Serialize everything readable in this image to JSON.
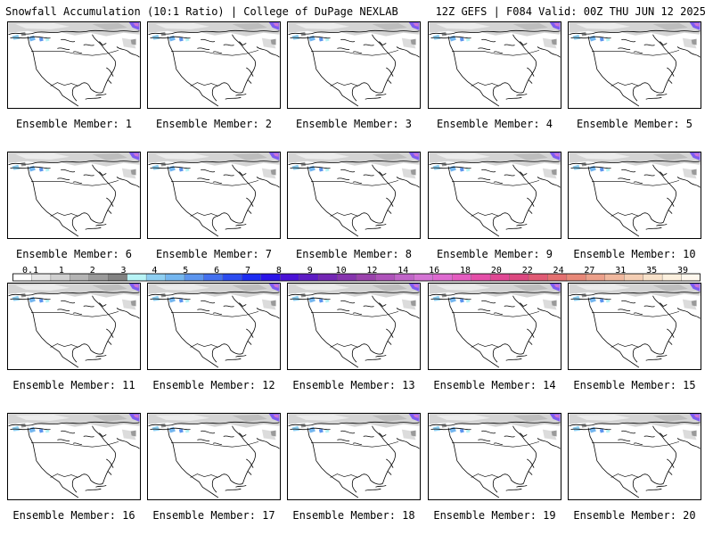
{
  "header": {
    "title_left": "Snowfall Accumulation (10:1 Ratio) | College of DuPage NEXLAB",
    "title_right": "12Z GEFS | F084 Valid: 00Z THU JUN 12 2025"
  },
  "members": [
    {
      "label": "Ensemble Member: 1"
    },
    {
      "label": "Ensemble Member: 2"
    },
    {
      "label": "Ensemble Member: 3"
    },
    {
      "label": "Ensemble Member: 4"
    },
    {
      "label": "Ensemble Member: 5"
    },
    {
      "label": "Ensemble Member: 6"
    },
    {
      "label": "Ensemble Member: 7"
    },
    {
      "label": "Ensemble Member: 8"
    },
    {
      "label": "Ensemble Member: 9"
    },
    {
      "label": "Ensemble Member: 10"
    },
    {
      "label": "Ensemble Member: 11"
    },
    {
      "label": "Ensemble Member: 12"
    },
    {
      "label": "Ensemble Member: 13"
    },
    {
      "label": "Ensemble Member: 14"
    },
    {
      "label": "Ensemble Member: 15"
    },
    {
      "label": "Ensemble Member: 16"
    },
    {
      "label": "Ensemble Member: 17"
    },
    {
      "label": "Ensemble Member: 18"
    },
    {
      "label": "Ensemble Member: 19"
    },
    {
      "label": "Ensemble Member: 20"
    }
  ],
  "colorbar": {
    "labels": [
      "0.1",
      "1",
      "2",
      "3",
      "4",
      "5",
      "6",
      "7",
      "8",
      "9",
      "10",
      "12",
      "14",
      "16",
      "18",
      "20",
      "22",
      "24",
      "27",
      "31",
      "35",
      "39"
    ],
    "colors": [
      "#ffffff",
      "#e6e6e6",
      "#cfcfcf",
      "#b4b4b4",
      "#9a9a9a",
      "#828282",
      "#b8f4f6",
      "#8ecff2",
      "#74b6ef",
      "#5c95ee",
      "#4470ef",
      "#2c4cf0",
      "#1c2cf2",
      "#2a14e8",
      "#4a12d6",
      "#5e1cc4",
      "#7326b4",
      "#8634ae",
      "#9a42ac",
      "#ae52ba",
      "#c064c8",
      "#d474d4",
      "#de6ad0",
      "#e45cc0",
      "#e44ea8",
      "#e04894",
      "#dc4880",
      "#e05a74",
      "#e47070",
      "#e88878",
      "#eca08a",
      "#f0b89e",
      "#f4ceb4",
      "#f8e2ca",
      "#fcf0de",
      "#fff8ee"
    ]
  }
}
